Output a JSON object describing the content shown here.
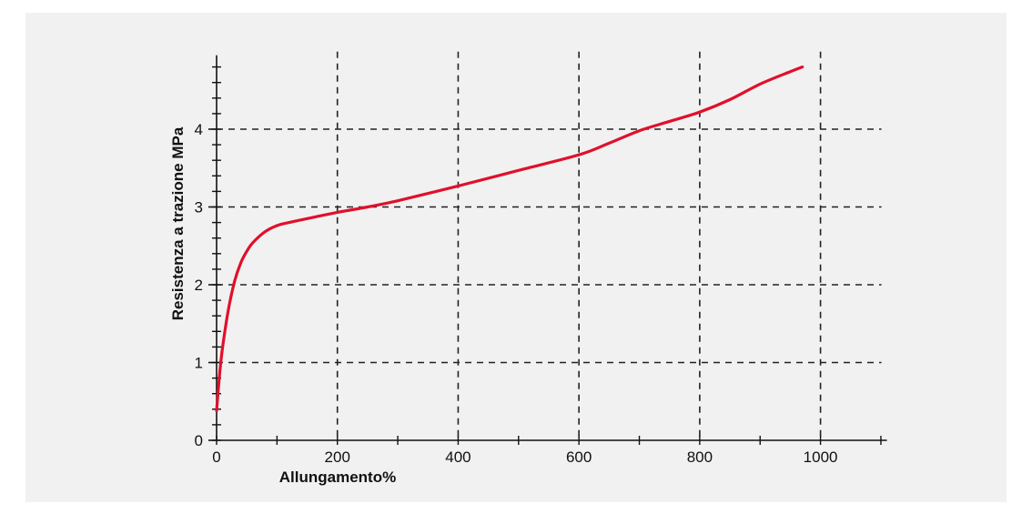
{
  "chart_data": {
    "type": "line",
    "xlabel": "Allungamento%",
    "ylabel": "Resistenza a trazione MPa",
    "xlim": [
      0,
      1110
    ],
    "ylim": [
      0,
      4.95
    ],
    "x_ticks": [
      0,
      200,
      400,
      600,
      800,
      1000
    ],
    "x_tick_labels": [
      "0",
      "200",
      "400",
      "600",
      "800",
      "1000"
    ],
    "y_ticks": [
      0,
      1,
      2,
      3,
      4
    ],
    "y_tick_labels": [
      "0",
      "1",
      "2",
      "3",
      "4"
    ],
    "grid": true,
    "grid_style": "dashed",
    "x_minor_step": 100,
    "y_minor_step": 0.2,
    "series": [
      {
        "color": "#e0102b",
        "x": [
          0,
          5,
          10,
          20,
          30,
          40,
          50,
          60,
          80,
          100,
          120,
          150,
          200,
          250,
          300,
          400,
          500,
          600,
          650,
          700,
          750,
          800,
          850,
          900,
          950,
          970
        ],
        "y": [
          0.38,
          0.85,
          1.2,
          1.7,
          2.05,
          2.28,
          2.43,
          2.54,
          2.68,
          2.76,
          2.8,
          2.85,
          2.93,
          3.0,
          3.08,
          3.27,
          3.47,
          3.67,
          3.82,
          3.98,
          4.1,
          4.22,
          4.38,
          4.58,
          4.74,
          4.8
        ]
      }
    ]
  }
}
